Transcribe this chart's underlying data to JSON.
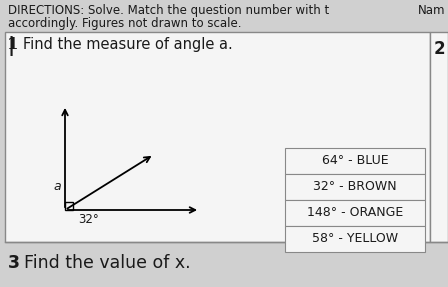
{
  "bg_color": "#d0d0d0",
  "box_bg": "#e8e8e8",
  "white_bg": "#f5f5f5",
  "header_line1": "DIRECTIONS: Solve. Match the question number with t",
  "header_line2": "accordingly. Figures not drawn to scale.",
  "name_label": "Nam",
  "q1_text": "Find the measure of angle a.",
  "q1_number": "1",
  "q2_number": "2",
  "q3_text": "Find the value of x.",
  "q3_number": "3",
  "angle_label": "a",
  "angle_degree": "32°",
  "answer_options": [
    "64° - BLUE",
    "32° - BROWN",
    "148° - ORANGE",
    "58° - YELLOW"
  ],
  "text_color": "#1a1a1a",
  "border_color": "#888888",
  "font_size_header": 8.5,
  "font_size_q": 10.5,
  "font_size_q3": 12.5,
  "font_size_answers": 9.0,
  "fig_width": 4.48,
  "fig_height": 2.87,
  "dpi": 100
}
